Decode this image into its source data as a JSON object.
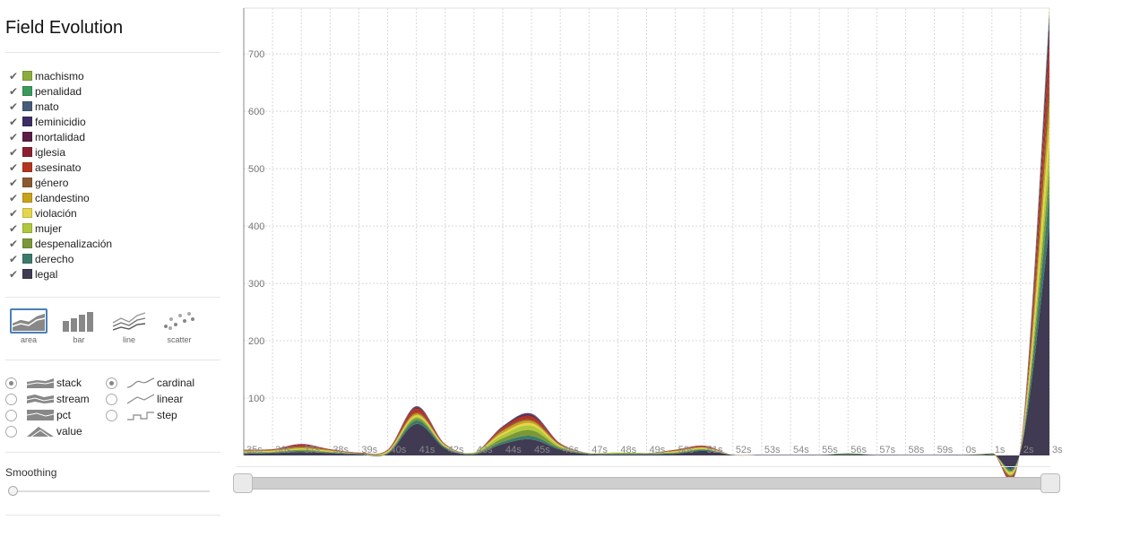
{
  "sidebar": {
    "title": "Field Evolution",
    "legend": [
      {
        "label": "machismo",
        "color": "#8cac3c"
      },
      {
        "label": "penalidad",
        "color": "#3a9a5c"
      },
      {
        "label": "mato",
        "color": "#475c78"
      },
      {
        "label": "feminicidio",
        "color": "#3c2e64"
      },
      {
        "label": "mortalidad",
        "color": "#5a1d46"
      },
      {
        "label": "iglesia",
        "color": "#8c1f2e"
      },
      {
        "label": "asesinato",
        "color": "#b4351e"
      },
      {
        "label": "género",
        "color": "#8b5a30"
      },
      {
        "label": "clandestino",
        "color": "#c9a21c"
      },
      {
        "label": "violación",
        "color": "#e3d64c"
      },
      {
        "label": "mujer",
        "color": "#b0c83a"
      },
      {
        "label": "despenalización",
        "color": "#7a9838"
      },
      {
        "label": "derecho",
        "color": "#3b7a6a"
      },
      {
        "label": "legal",
        "color": "#403a52"
      }
    ],
    "renderers": [
      {
        "label": "area",
        "icon": "area-icon",
        "active": true
      },
      {
        "label": "bar",
        "icon": "bar-icon",
        "active": false
      },
      {
        "label": "line",
        "icon": "line-icon",
        "active": false
      },
      {
        "label": "scatter",
        "icon": "scatter-icon",
        "active": false
      }
    ],
    "offsets": [
      {
        "label": "stack",
        "selected": true
      },
      {
        "label": "stream",
        "selected": false
      },
      {
        "label": "pct",
        "selected": false
      },
      {
        "label": "value",
        "selected": false
      }
    ],
    "interpolations": [
      {
        "label": "cardinal",
        "selected": true
      },
      {
        "label": "linear",
        "selected": false
      },
      {
        "label": "step",
        "selected": false
      }
    ],
    "smoothing_label": "Smoothing",
    "smoothing_value": 0
  },
  "chart_data": {
    "type": "area",
    "stacked": true,
    "ylim": [
      0,
      780
    ],
    "yticks": [
      100,
      200,
      300,
      400,
      500,
      600,
      700
    ],
    "grid": true,
    "x": [
      "35s",
      "36s",
      "37s",
      "38s",
      "39s",
      "40s",
      "41s",
      "42s",
      "43s",
      "44s",
      "45s",
      "46s",
      "47s",
      "48s",
      "49s",
      "50s",
      "51s",
      "52s",
      "53s",
      "54s",
      "55s",
      "56s",
      "57s",
      "58s",
      "59s",
      "0s",
      "1s",
      "2s",
      "3s"
    ],
    "series": [
      {
        "name": "legal",
        "color": "#403a52",
        "values": [
          3,
          4,
          6,
          4,
          2,
          3,
          55,
          12,
          2,
          20,
          28,
          10,
          2,
          2,
          2,
          3,
          8,
          1,
          1,
          1,
          1,
          2,
          1,
          1,
          1,
          1,
          2,
          8,
          400
        ]
      },
      {
        "name": "derecho",
        "color": "#3b7a6a",
        "values": [
          1,
          1,
          2,
          1,
          1,
          1,
          6,
          2,
          1,
          4,
          6,
          2,
          1,
          1,
          1,
          1,
          2,
          0,
          0,
          0,
          0,
          1,
          0,
          0,
          0,
          0,
          1,
          1,
          60
        ]
      },
      {
        "name": "despenalización",
        "color": "#7a9838",
        "values": [
          1,
          1,
          2,
          1,
          1,
          1,
          4,
          1,
          1,
          6,
          10,
          2,
          1,
          1,
          1,
          1,
          1,
          0,
          0,
          0,
          0,
          1,
          0,
          0,
          0,
          0,
          1,
          1,
          40
        ]
      },
      {
        "name": "mujer",
        "color": "#b0c83a",
        "values": [
          1,
          1,
          1,
          1,
          0,
          1,
          3,
          1,
          1,
          6,
          8,
          2,
          0,
          1,
          0,
          1,
          1,
          0,
          0,
          0,
          0,
          0,
          0,
          0,
          0,
          0,
          0,
          1,
          40
        ]
      },
      {
        "name": "violación",
        "color": "#e3d64c",
        "values": [
          1,
          1,
          1,
          1,
          0,
          1,
          2,
          1,
          0,
          3,
          4,
          1,
          0,
          0,
          0,
          1,
          1,
          0,
          0,
          0,
          0,
          0,
          0,
          0,
          0,
          0,
          0,
          1,
          40
        ]
      },
      {
        "name": "clandestino",
        "color": "#c9a21c",
        "values": [
          1,
          1,
          2,
          1,
          0,
          1,
          3,
          1,
          0,
          4,
          4,
          1,
          0,
          0,
          0,
          1,
          1,
          0,
          0,
          0,
          0,
          0,
          0,
          0,
          0,
          0,
          0,
          1,
          40
        ]
      },
      {
        "name": "género",
        "color": "#8b5a30",
        "values": [
          1,
          1,
          2,
          1,
          0,
          1,
          2,
          1,
          0,
          2,
          2,
          1,
          0,
          0,
          0,
          1,
          1,
          0,
          0,
          0,
          0,
          0,
          0,
          0,
          0,
          0,
          0,
          1,
          40
        ]
      },
      {
        "name": "asesinato",
        "color": "#b4351e",
        "values": [
          1,
          1,
          2,
          1,
          1,
          1,
          6,
          1,
          0,
          3,
          5,
          1,
          0,
          0,
          0,
          1,
          1,
          0,
          0,
          0,
          0,
          0,
          0,
          0,
          0,
          0,
          0,
          1,
          50
        ]
      },
      {
        "name": "iglesia",
        "color": "#8c1f2e",
        "values": [
          0,
          0,
          1,
          0,
          0,
          0,
          2,
          0,
          0,
          1,
          2,
          1,
          0,
          0,
          0,
          0,
          1,
          0,
          0,
          0,
          0,
          0,
          0,
          0,
          0,
          0,
          0,
          1,
          20
        ]
      },
      {
        "name": "mortalidad",
        "color": "#5a1d46",
        "values": [
          0,
          0,
          1,
          0,
          0,
          0,
          1,
          0,
          0,
          1,
          2,
          0,
          0,
          0,
          0,
          0,
          0,
          0,
          0,
          0,
          0,
          0,
          0,
          0,
          0,
          0,
          0,
          0,
          20
        ]
      },
      {
        "name": "feminicidio",
        "color": "#3c2e64",
        "values": [
          0,
          0,
          0,
          0,
          0,
          0,
          1,
          0,
          0,
          1,
          1,
          0,
          0,
          0,
          0,
          0,
          0,
          0,
          0,
          0,
          0,
          0,
          0,
          0,
          0,
          0,
          0,
          0,
          10
        ]
      },
      {
        "name": "mato",
        "color": "#475c78",
        "values": [
          0,
          0,
          0,
          0,
          0,
          0,
          1,
          0,
          0,
          0,
          1,
          0,
          0,
          0,
          0,
          0,
          0,
          0,
          0,
          0,
          0,
          0,
          0,
          0,
          0,
          0,
          0,
          0,
          10
        ]
      },
      {
        "name": "penalidad",
        "color": "#3a9a5c",
        "values": [
          0,
          0,
          0,
          0,
          0,
          0,
          0,
          0,
          0,
          0,
          0,
          0,
          0,
          0,
          0,
          0,
          0,
          0,
          0,
          0,
          0,
          0,
          0,
          0,
          0,
          0,
          0,
          0,
          5
        ]
      },
      {
        "name": "machismo",
        "color": "#8cac3c",
        "values": [
          0,
          0,
          0,
          0,
          0,
          0,
          0,
          0,
          0,
          0,
          0,
          0,
          0,
          0,
          0,
          0,
          0,
          0,
          0,
          0,
          0,
          0,
          0,
          0,
          0,
          0,
          0,
          0,
          5
        ]
      }
    ]
  }
}
